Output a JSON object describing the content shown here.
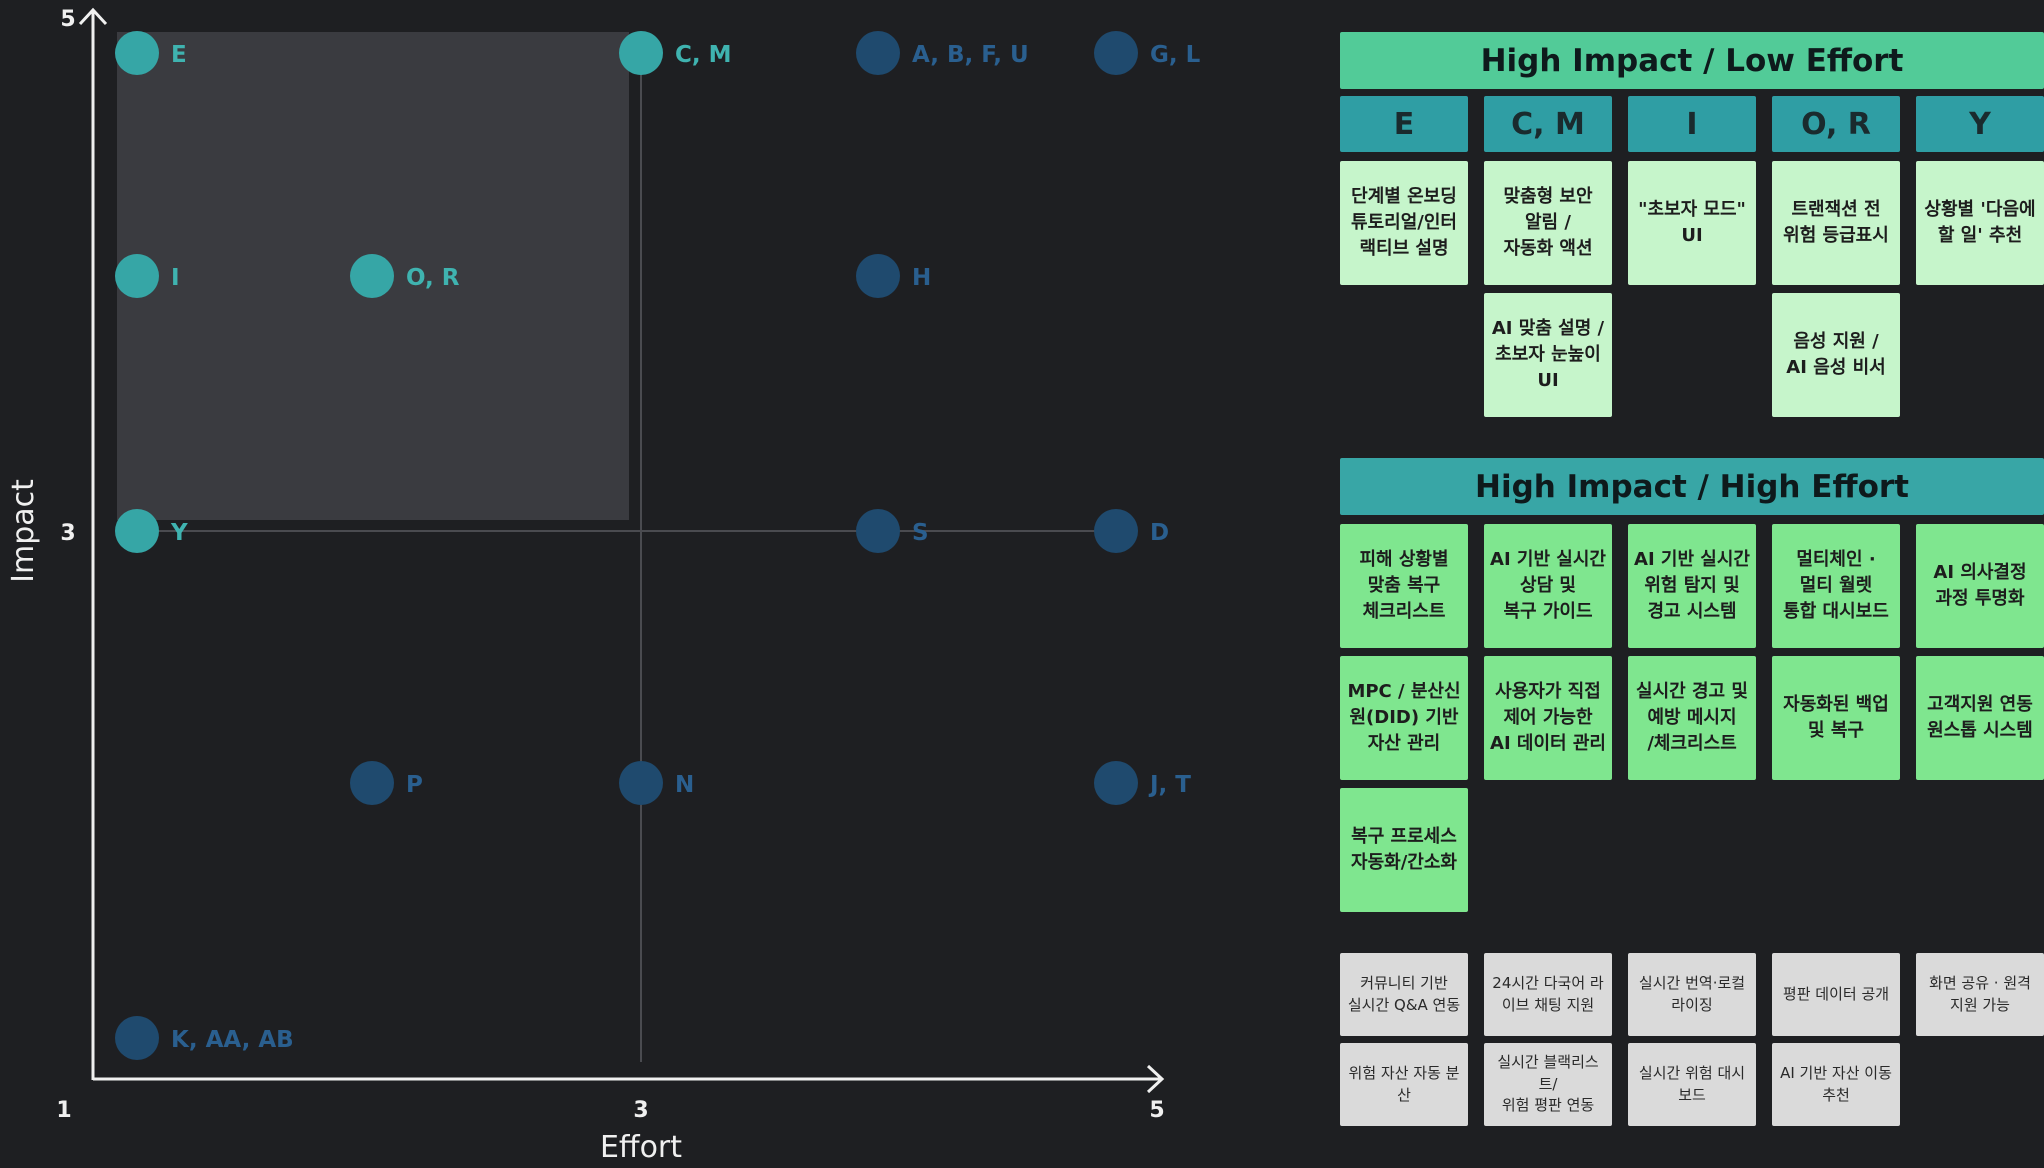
{
  "matrix": {
    "x_label": "Effort",
    "y_label": "Impact",
    "x_ticks": [
      "1",
      "3",
      "5"
    ],
    "y_ticks": [
      "5",
      "3"
    ],
    "highlight_color": "#3a3b40",
    "colors": {
      "quick_win": "#36a6a6",
      "other": "#1f4a6e",
      "quick_win_text": "#3fb3b0",
      "other_text": "#2a5f8f"
    },
    "points": [
      {
        "label": "E",
        "effort": 1,
        "impact": 5,
        "group": "quick_win"
      },
      {
        "label": "C, M",
        "effort": 3,
        "impact": 5,
        "group": "quick_win"
      },
      {
        "label": "A, B, F, U",
        "effort": 4,
        "impact": 5,
        "group": "other"
      },
      {
        "label": "G, L",
        "effort": 5,
        "impact": 5,
        "group": "other"
      },
      {
        "label": "I",
        "effort": 1,
        "impact": 4,
        "group": "quick_win"
      },
      {
        "label": "O, R",
        "effort": 2,
        "impact": 4,
        "group": "quick_win"
      },
      {
        "label": "H",
        "effort": 4,
        "impact": 4,
        "group": "other"
      },
      {
        "label": "Y",
        "effort": 1,
        "impact": 3,
        "group": "quick_win"
      },
      {
        "label": "S",
        "effort": 4,
        "impact": 3,
        "group": "other"
      },
      {
        "label": "D",
        "effort": 5,
        "impact": 3,
        "group": "other"
      },
      {
        "label": "P",
        "effort": 2,
        "impact": 2,
        "group": "other"
      },
      {
        "label": "N",
        "effort": 3,
        "impact": 2,
        "group": "other"
      },
      {
        "label": "J, T",
        "effort": 5,
        "impact": 2,
        "group": "other"
      },
      {
        "label": "K, AA, AB",
        "effort": 1,
        "impact": 1,
        "group": "other"
      }
    ]
  },
  "high_impact_low_effort": {
    "title": "High Impact / Low Effort",
    "columns": [
      {
        "id": "E",
        "cards": [
          "단계별 온보딩\n튜토리얼/인터\n랙티브 설명"
        ]
      },
      {
        "id": "C, M",
        "cards": [
          "맞춤형 보안\n알림 /\n자동화 액션",
          "AI 맞춤 설명 /\n초보자 눈높이\nUI"
        ]
      },
      {
        "id": "I",
        "cards": [
          "\"초보자 모드\"\nUI"
        ]
      },
      {
        "id": "O, R",
        "cards": [
          "트랜잭션 전\n위험 등급표시",
          "음성 지원 /\nAI 음성 비서"
        ]
      },
      {
        "id": "Y",
        "cards": [
          "상황별 '다음에\n할 일' 추천"
        ]
      }
    ]
  },
  "high_impact_high_effort": {
    "title": "High Impact / High Effort",
    "cards": [
      "피해 상황별\n맞춤 복구\n체크리스트",
      "AI 기반 실시간\n상담 및\n복구 가이드",
      "AI 기반 실시간\n위험 탐지 및\n경고 시스템",
      "멀티체인 ·\n멀티 월렛\n통합 대시보드",
      "AI 의사결정\n과정 투명화",
      "MPC / 분산신\n원(DID) 기반\n자산 관리",
      "사용자가 직접\n제어 가능한\nAI 데이터 관리",
      "실시간 경고 및\n예방 메시지\n/체크리스트",
      "자동화된 백업\n및 복구",
      "고객지원 연동\n원스톱 시스템",
      "복구 프로세스\n자동화/간소화"
    ]
  },
  "other_ideas": {
    "cards": [
      "커뮤니티 기반\n실시간 Q&A 연동",
      "24시간 다국어 라\n이브 채팅 지원",
      "실시간 번역·로컬\n라이징",
      "평판 데이터 공개",
      "화면 공유 · 원격\n지원 가능",
      "위험 자산 자동 분\n산",
      "실시간 블랙리스\n트/\n위험 평판 연동",
      "실시간 위험 대시\n보드",
      "AI 기반 자산 이동\n추천"
    ]
  }
}
